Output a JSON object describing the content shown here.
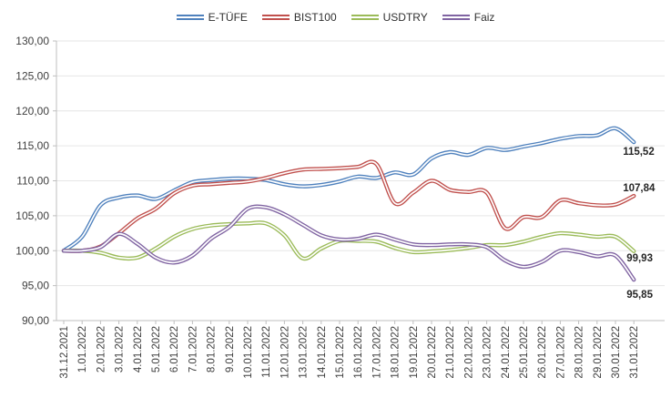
{
  "chart_data": {
    "type": "line",
    "title": "",
    "xlabel": "",
    "ylabel": "",
    "ylim": [
      90,
      130
    ],
    "y_step": 5,
    "y_tick_format": "comma-decimal",
    "grid": true,
    "legend_position": "top",
    "line_style": "double-outline",
    "x_labels": [
      "31.12.2021",
      "1.01.2022",
      "2.01.2022",
      "3.01.2022",
      "4.01.2022",
      "5.01.2022",
      "6.01.2022",
      "7.01.2022",
      "8.01.2022",
      "9.01.2022",
      "10.01.2022",
      "11.01.2022",
      "12.01.2022",
      "13.01.2022",
      "14.01.2022",
      "15.01.2022",
      "16.01.2022",
      "17.01.2022",
      "18.01.2022",
      "19.01.2022",
      "20.01.2022",
      "21.01.2022",
      "22.01.2022",
      "23.01.2022",
      "24.01.2022",
      "25.01.2022",
      "26.01.2022",
      "27.01.2022",
      "28.01.2022",
      "29.01.2022",
      "30.01.2022",
      "31.01.2022"
    ],
    "series": [
      {
        "name": "E-TÜFE",
        "color": "#4F81BD",
        "end_label": "115,52",
        "label_offset": [
          -12,
          14
        ],
        "values": [
          100.0,
          102.0,
          106.5,
          107.6,
          107.9,
          107.4,
          108.6,
          109.8,
          110.1,
          110.3,
          110.3,
          110.1,
          109.5,
          109.2,
          109.4,
          109.9,
          110.6,
          110.4,
          111.2,
          110.9,
          113.2,
          114.1,
          113.7,
          114.7,
          114.4,
          114.9,
          115.4,
          116.0,
          116.4,
          116.5,
          117.5,
          115.52
        ]
      },
      {
        "name": "BIST100",
        "color": "#C0504D",
        "end_label": "107,84",
        "label_offset": [
          -12,
          -5
        ],
        "values": [
          100.0,
          100.0,
          100.6,
          102.5,
          104.6,
          106.0,
          108.2,
          109.3,
          109.5,
          109.7,
          109.9,
          110.4,
          111.1,
          111.6,
          111.7,
          111.8,
          112.0,
          112.4,
          106.8,
          108.3,
          110.0,
          108.7,
          108.4,
          108.3,
          103.2,
          104.8,
          104.8,
          107.2,
          106.8,
          106.5,
          106.6,
          107.84
        ]
      },
      {
        "name": "USDTRY",
        "color": "#9BBB59",
        "end_label": "99,93",
        "label_offset": [
          -8,
          11
        ],
        "values": [
          100.0,
          100.0,
          99.7,
          99.0,
          99.0,
          100.3,
          102.0,
          103.1,
          103.6,
          103.8,
          103.9,
          103.9,
          102.2,
          98.9,
          100.3,
          101.4,
          101.4,
          101.3,
          100.4,
          99.8,
          99.9,
          100.1,
          100.4,
          100.8,
          100.8,
          101.3,
          102.0,
          102.5,
          102.3,
          102.0,
          102.0,
          99.93
        ]
      },
      {
        "name": "Faiz",
        "color": "#8064A2",
        "end_label": "95,85",
        "label_offset": [
          -8,
          20
        ],
        "values": [
          100.0,
          100.0,
          100.5,
          102.4,
          101.0,
          99.0,
          98.3,
          99.3,
          101.7,
          103.4,
          106.0,
          106.2,
          105.2,
          103.7,
          102.2,
          101.6,
          101.7,
          102.3,
          101.6,
          100.9,
          100.8,
          100.9,
          100.9,
          100.5,
          98.6,
          97.7,
          98.4,
          100.0,
          99.8,
          99.2,
          99.3,
          95.85
        ]
      }
    ]
  }
}
